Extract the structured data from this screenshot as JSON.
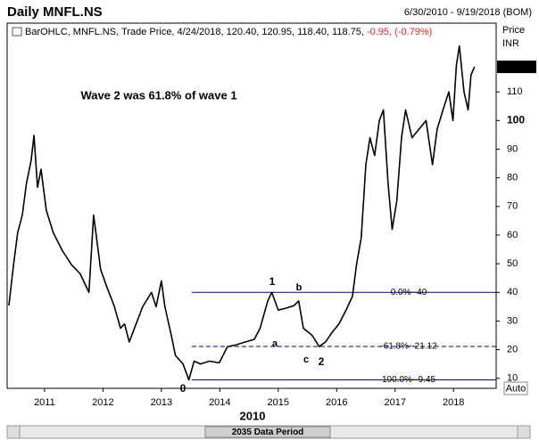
{
  "header": {
    "title": "Daily MNFL.NS",
    "range": "6/30/2010 - 9/19/2018 (BOM)",
    "legend": "BarOHLC, MNFL.NS, Trade Price, 4/24/2018, 120.40, 120.95, 118.40, 118.75,",
    "change": "-0.95, (-0.79%)",
    "change_color": "#e8262b"
  },
  "chart_data": {
    "type": "line",
    "y_axis_label": "Price",
    "y_axis_unit": "INR",
    "xlim": [
      2010.36,
      2018.73
    ],
    "xticks": [
      2011,
      2012,
      2013,
      2014,
      2015,
      2016,
      2017,
      2018
    ],
    "ylim": [
      6.5,
      134
    ],
    "yticks": [
      10,
      20,
      30,
      40,
      50,
      60,
      70,
      80,
      90,
      100,
      110
    ],
    "x": [
      2010.39,
      2010.47,
      2010.54,
      2010.62,
      2010.69,
      2010.77,
      2010.82,
      2010.88,
      2010.94,
      2011.03,
      2011.15,
      2011.31,
      2011.46,
      2011.61,
      2011.76,
      2011.84,
      2011.96,
      2012.07,
      2012.19,
      2012.3,
      2012.37,
      2012.45,
      2012.53,
      2012.68,
      2012.83,
      2012.91,
      2013.0,
      2013.06,
      2013.17,
      2013.24,
      2013.37,
      2013.47,
      2013.56,
      2013.67,
      2013.82,
      2013.99,
      2014.13,
      2014.28,
      2014.44,
      2014.59,
      2014.69,
      2014.82,
      2014.89,
      2015.0,
      2015.12,
      2015.27,
      2015.35,
      2015.43,
      2015.58,
      2015.7,
      2015.81,
      2015.92,
      2016.04,
      2016.16,
      2016.27,
      2016.34,
      2016.42,
      2016.5,
      2016.57,
      2016.65,
      2016.73,
      2016.8,
      2016.88,
      2016.95,
      2017.03,
      2017.11,
      2017.18,
      2017.29,
      2017.41,
      2017.53,
      2017.64,
      2017.72,
      2017.82,
      2017.92,
      2017.99,
      2018.05,
      2018.1,
      2018.18,
      2018.25,
      2018.3,
      2018.36
    ],
    "series": [
      {
        "name": "MNFL.NS",
        "color": "#000000",
        "values": [
          35.4,
          49.7,
          60.8,
          67,
          78,
          86,
          94.8,
          76.7,
          83,
          68.7,
          60.8,
          54.4,
          49.7,
          46.5,
          40,
          67,
          48,
          41.7,
          35.4,
          27.5,
          29,
          22.7,
          27,
          35,
          40,
          35,
          44,
          35,
          25,
          18,
          15,
          9.45,
          16,
          15,
          16,
          15.4,
          21,
          21.7,
          22.7,
          23.6,
          27.5,
          37,
          40,
          33.8,
          34.4,
          35.4,
          37,
          27.5,
          25,
          21.1,
          22.7,
          26,
          29,
          33.8,
          38.6,
          49.7,
          59,
          84.6,
          94,
          87.8,
          100,
          103.7,
          78,
          62,
          72,
          94,
          103.7,
          94,
          97,
          100,
          84.6,
          97,
          103.7,
          110,
          100,
          119.5,
          126,
          110,
          103.7,
          116,
          118.75
        ]
      }
    ],
    "levels": [
      {
        "label": "0.0%--40",
        "value": 40,
        "dashed": false,
        "color": "#00007f"
      },
      {
        "label": "-61.8%--21.12",
        "value": 21.12,
        "dashed": true,
        "color": "#00007f"
      },
      {
        "label": "100.0%--9.45",
        "value": 9.45,
        "dashed": false,
        "color": "#00007f"
      }
    ],
    "levels_from": 2013.52,
    "annotations": [
      {
        "text": "Wave 2 was 61.8% of wave 1",
        "color": "#e8262b"
      },
      {
        "text": "0",
        "color": "#e8262b"
      },
      {
        "text": "1",
        "color": "#e8262b"
      },
      {
        "text": "2",
        "color": "#e8262b"
      },
      {
        "text": "a",
        "color": "#cc33cc"
      },
      {
        "text": "b",
        "color": "#cc33cc"
      },
      {
        "text": "c",
        "color": "#cc33cc"
      }
    ]
  },
  "ui": {
    "auto": "Auto",
    "period_year": "2010",
    "scrollbar": "2035 Data Period"
  }
}
